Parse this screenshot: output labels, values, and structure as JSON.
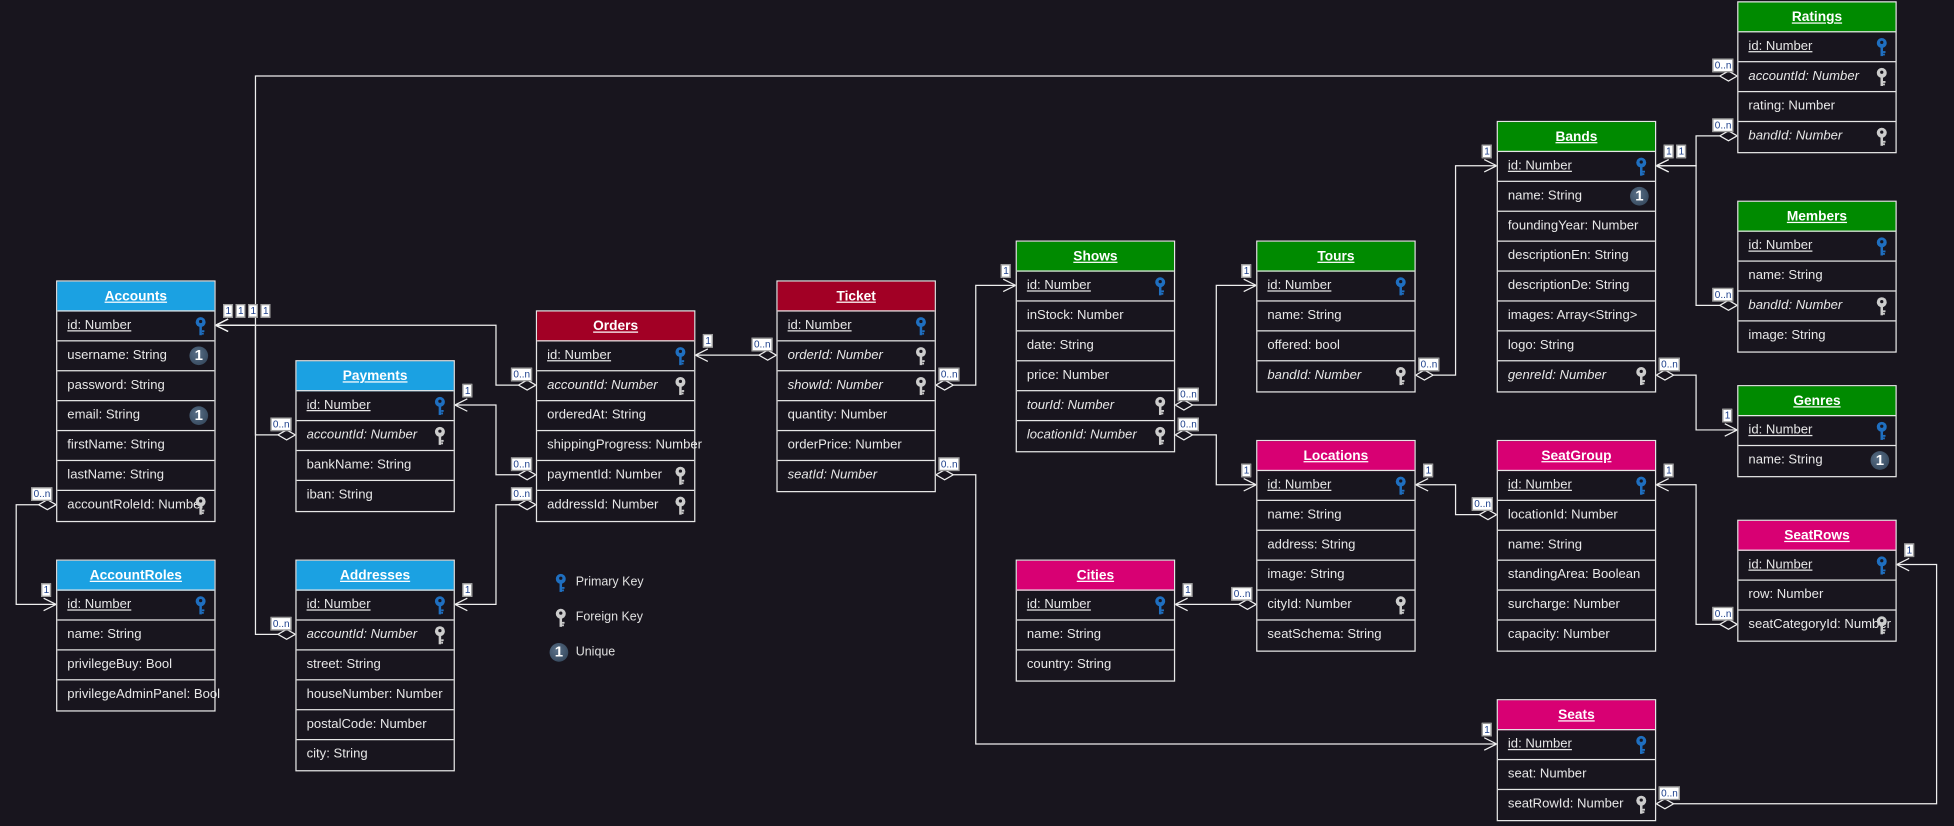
{
  "colors": {
    "background": "#18151e",
    "blue": "#1ba1e2",
    "red": "#a20025",
    "green": "#008a00",
    "pink": "#d80073",
    "primary_key": "#1f6fc0",
    "foreign_key": "#cccccc"
  },
  "legend": [
    {
      "icon": "primary-key-icon",
      "label": "Primary Key"
    },
    {
      "icon": "foreign-key-icon",
      "label": "Foreign Key"
    },
    {
      "icon": "unique-icon",
      "label": "Unique"
    }
  ],
  "entities": [
    {
      "name": "Accounts",
      "color": "#1ba1e2",
      "fields": [
        {
          "label": "id: Number",
          "key": "pk",
          "style": "underline"
        },
        {
          "label": "username: String",
          "key": "unique",
          "style": "normal"
        },
        {
          "label": "password: String",
          "key": "",
          "style": "normal"
        },
        {
          "label": "email: String",
          "key": "unique",
          "style": "normal"
        },
        {
          "label": "firstName: String",
          "key": "",
          "style": "normal"
        },
        {
          "label": "lastName: String",
          "key": "",
          "style": "normal"
        },
        {
          "label": "accountRoleId: Number",
          "key": "fk",
          "style": "normal"
        }
      ]
    },
    {
      "name": "AccountRoles",
      "color": "#1ba1e2",
      "fields": [
        {
          "label": "id: Number",
          "key": "pk",
          "style": "underline"
        },
        {
          "label": "name: String",
          "key": "",
          "style": "normal"
        },
        {
          "label": "privilegeBuy: Bool",
          "key": "",
          "style": "normal"
        },
        {
          "label": "privilegeAdminPanel: Bool",
          "key": "",
          "style": "normal"
        }
      ]
    },
    {
      "name": "Payments",
      "color": "#1ba1e2",
      "fields": [
        {
          "label": "id: Number",
          "key": "pk",
          "style": "underline"
        },
        {
          "label": "accountId: Number",
          "key": "fk",
          "style": "italic"
        },
        {
          "label": "bankName: String",
          "key": "",
          "style": "normal"
        },
        {
          "label": "iban: String",
          "key": "",
          "style": "normal"
        }
      ]
    },
    {
      "name": "Addresses",
      "color": "#1ba1e2",
      "fields": [
        {
          "label": "id: Number",
          "key": "pk",
          "style": "underline"
        },
        {
          "label": "accountId: Number",
          "key": "fk",
          "style": "italic"
        },
        {
          "label": "street: String",
          "key": "",
          "style": "normal"
        },
        {
          "label": "houseNumber: Number",
          "key": "",
          "style": "normal"
        },
        {
          "label": "postalCode: Number",
          "key": "",
          "style": "normal"
        },
        {
          "label": "city: String",
          "key": "",
          "style": "normal"
        }
      ]
    },
    {
      "name": "Orders",
      "color": "#a20025",
      "fields": [
        {
          "label": "id: Number",
          "key": "pk",
          "style": "underline"
        },
        {
          "label": "accountId: Number",
          "key": "fk",
          "style": "italic"
        },
        {
          "label": "orderedAt: String",
          "key": "",
          "style": "normal"
        },
        {
          "label": "shippingProgress: Number",
          "key": "",
          "style": "normal"
        },
        {
          "label": "paymentId: Number",
          "key": "fk",
          "style": "normal"
        },
        {
          "label": "addressId: Number",
          "key": "fk",
          "style": "normal"
        }
      ]
    },
    {
      "name": "Ticket",
      "color": "#a20025",
      "fields": [
        {
          "label": "id: Number",
          "key": "pk",
          "style": "underline"
        },
        {
          "label": "orderId: Number",
          "key": "fk",
          "style": "italic"
        },
        {
          "label": "showId: Number",
          "key": "fk",
          "style": "italic"
        },
        {
          "label": "quantity: Number",
          "key": "",
          "style": "normal"
        },
        {
          "label": "orderPrice: Number",
          "key": "",
          "style": "normal"
        },
        {
          "label": "seatId: Number",
          "key": "",
          "style": "italic"
        }
      ]
    },
    {
      "name": "Shows",
      "color": "#008a00",
      "fields": [
        {
          "label": "id: Number",
          "key": "pk",
          "style": "underline"
        },
        {
          "label": "inStock: Number",
          "key": "",
          "style": "normal"
        },
        {
          "label": "date: String",
          "key": "",
          "style": "normal"
        },
        {
          "label": "price: Number",
          "key": "",
          "style": "normal"
        },
        {
          "label": "tourId: Number",
          "key": "fk",
          "style": "italic"
        },
        {
          "label": "locationId: Number",
          "key": "fk",
          "style": "italic"
        }
      ]
    },
    {
      "name": "Tours",
      "color": "#008a00",
      "fields": [
        {
          "label": "id: Number",
          "key": "pk",
          "style": "underline"
        },
        {
          "label": "name: String",
          "key": "",
          "style": "normal"
        },
        {
          "label": "offered: bool",
          "key": "",
          "style": "normal"
        },
        {
          "label": "bandId: Number",
          "key": "fk",
          "style": "italic"
        }
      ]
    },
    {
      "name": "Bands",
      "color": "#008a00",
      "fields": [
        {
          "label": "id: Number",
          "key": "pk",
          "style": "underline"
        },
        {
          "label": "name: String",
          "key": "unique",
          "style": "normal"
        },
        {
          "label": "foundingYear: Number",
          "key": "",
          "style": "normal"
        },
        {
          "label": "descriptionEn: String",
          "key": "",
          "style": "normal"
        },
        {
          "label": "descriptionDe: String",
          "key": "",
          "style": "normal"
        },
        {
          "label": "images: Array<String>",
          "key": "",
          "style": "normal"
        },
        {
          "label": "logo: String",
          "key": "",
          "style": "normal"
        },
        {
          "label": "genreId: Number",
          "key": "fk",
          "style": "italic"
        }
      ]
    },
    {
      "name": "Ratings",
      "color": "#008a00",
      "fields": [
        {
          "label": "id: Number",
          "key": "pk",
          "style": "underline"
        },
        {
          "label": "accountId: Number",
          "key": "fk",
          "style": "italic"
        },
        {
          "label": "rating: Number",
          "key": "",
          "style": "normal"
        },
        {
          "label": "bandId: Number",
          "key": "fk",
          "style": "italic"
        }
      ]
    },
    {
      "name": "Members",
      "color": "#008a00",
      "fields": [
        {
          "label": "id: Number",
          "key": "pk",
          "style": "underline"
        },
        {
          "label": "name: String",
          "key": "",
          "style": "normal"
        },
        {
          "label": "bandId: Number",
          "key": "fk",
          "style": "italic"
        },
        {
          "label": "image: String",
          "key": "",
          "style": "normal"
        }
      ]
    },
    {
      "name": "Genres",
      "color": "#008a00",
      "fields": [
        {
          "label": "id: Number",
          "key": "pk",
          "style": "underline"
        },
        {
          "label": "name: String",
          "key": "unique",
          "style": "normal"
        }
      ]
    },
    {
      "name": "Cities",
      "color": "#d80073",
      "fields": [
        {
          "label": "id: Number",
          "key": "pk",
          "style": "underline"
        },
        {
          "label": "name: String",
          "key": "",
          "style": "normal"
        },
        {
          "label": "country: String",
          "key": "",
          "style": "normal"
        }
      ]
    },
    {
      "name": "Locations",
      "color": "#d80073",
      "fields": [
        {
          "label": "id: Number",
          "key": "pk",
          "style": "underline"
        },
        {
          "label": "name: String",
          "key": "",
          "style": "normal"
        },
        {
          "label": "address: String",
          "key": "",
          "style": "normal"
        },
        {
          "label": "image: String",
          "key": "",
          "style": "normal"
        },
        {
          "label": "cityId: Number",
          "key": "fk",
          "style": "normal"
        },
        {
          "label": "seatSchema: String",
          "key": "",
          "style": "normal"
        }
      ]
    },
    {
      "name": "SeatGroup",
      "color": "#d80073",
      "fields": [
        {
          "label": "id: Number",
          "key": "pk",
          "style": "underline"
        },
        {
          "label": "locationId: Number",
          "key": "",
          "style": "normal"
        },
        {
          "label": "name: String",
          "key": "",
          "style": "normal"
        },
        {
          "label": "standingArea: Boolean",
          "key": "",
          "style": "normal"
        },
        {
          "label": "surcharge: Number",
          "key": "",
          "style": "normal"
        },
        {
          "label": "capacity: Number",
          "key": "",
          "style": "normal"
        }
      ]
    },
    {
      "name": "SeatRows",
      "color": "#d80073",
      "fields": [
        {
          "label": "id: Number",
          "key": "pk",
          "style": "underline"
        },
        {
          "label": "row: Number",
          "key": "",
          "style": "normal"
        },
        {
          "label": "seatCategoryId: Number",
          "key": "fk",
          "style": "normal"
        }
      ]
    },
    {
      "name": "Seats",
      "color": "#d80073",
      "fields": [
        {
          "label": "id: Number",
          "key": "pk",
          "style": "underline"
        },
        {
          "label": "seat: Number",
          "key": "",
          "style": "normal"
        },
        {
          "label": "seatRowId: Number",
          "key": "fk",
          "style": "normal"
        }
      ]
    }
  ],
  "relations": [
    {
      "from": "Ratings.accountId",
      "to": "Accounts.id",
      "from_card": "0..n",
      "to_card": "1"
    },
    {
      "from": "Orders.accountId",
      "to": "Accounts.id",
      "from_card": "0..n",
      "to_card": "1"
    },
    {
      "from": "Payments.accountId",
      "to": "Accounts.id",
      "from_card": "0..n",
      "to_card": "1"
    },
    {
      "from": "Addresses.accountId",
      "to": "Accounts.id",
      "from_card": "0..n",
      "to_card": "1"
    },
    {
      "from": "Accounts.accountRoleId",
      "to": "AccountRoles.id",
      "from_card": "0..n",
      "to_card": "1"
    },
    {
      "from": "Orders.paymentId",
      "to": "Payments.id",
      "from_card": "0..n",
      "to_card": "1"
    },
    {
      "from": "Orders.addressId",
      "to": "Addresses.id",
      "from_card": "0..n",
      "to_card": "1"
    },
    {
      "from": "Ticket.orderId",
      "to": "Orders.id",
      "from_card": "0..n",
      "to_card": "1"
    },
    {
      "from": "Ticket.showId",
      "to": "Shows.id",
      "from_card": "0..n",
      "to_card": "1"
    },
    {
      "from": "Ticket.seatId",
      "to": "Seats.id",
      "from_card": "0..n",
      "to_card": "1"
    },
    {
      "from": "Shows.tourId",
      "to": "Tours.id",
      "from_card": "0..n",
      "to_card": "1"
    },
    {
      "from": "Shows.locationId",
      "to": "Locations.id",
      "from_card": "0..n",
      "to_card": "1"
    },
    {
      "from": "Tours.bandId",
      "to": "Bands.id",
      "from_card": "0..n",
      "to_card": "1"
    },
    {
      "from": "Locations.cityId",
      "to": "Cities.id",
      "from_card": "0..n",
      "to_card": "1"
    },
    {
      "from": "SeatGroup.locationId",
      "to": "Locations.id",
      "from_card": "0..n",
      "to_card": "1"
    },
    {
      "from": "Ratings.bandId",
      "to": "Bands.id",
      "from_card": "0..n",
      "to_card": "1"
    },
    {
      "from": "Members.bandId",
      "to": "Bands.id",
      "from_card": "0..n",
      "to_card": "1"
    },
    {
      "from": "Bands.genreId",
      "to": "Genres.id",
      "from_card": "0..n",
      "to_card": "1"
    },
    {
      "from": "SeatRows.seatCategoryId",
      "to": "SeatGroup.id",
      "from_card": "0..n",
      "to_card": "1"
    },
    {
      "from": "Seats.seatRowId",
      "to": "SeatRows.id",
      "from_card": "0..n",
      "to_card": "1"
    }
  ]
}
